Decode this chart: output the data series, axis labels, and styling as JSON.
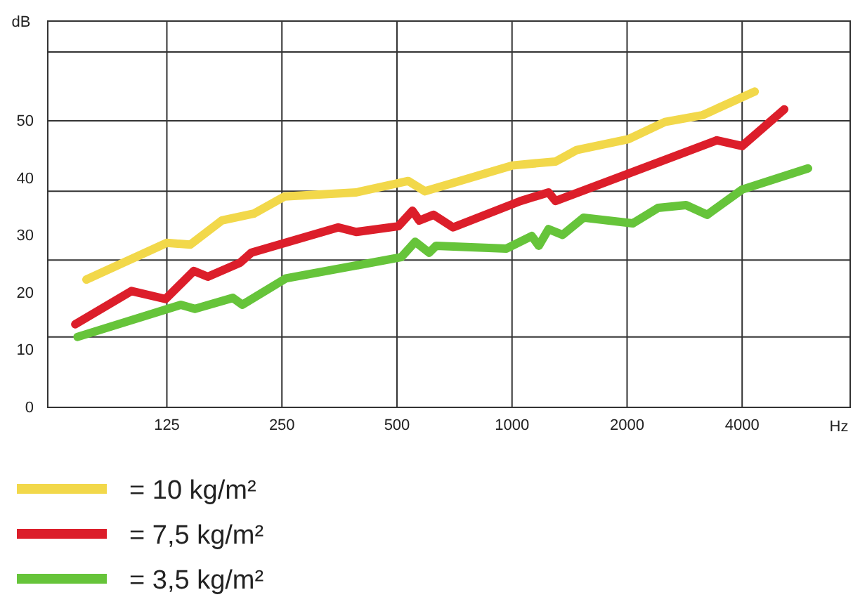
{
  "chart_data": {
    "type": "line",
    "xlabel": "Hz",
    "ylabel": "dB",
    "log": "x",
    "grid": true,
    "legend": "bottom",
    "line_style": "solid",
    "marker": "none",
    "xlim": [
      61,
      7670
    ],
    "xticks": [
      125,
      250,
      500,
      1000,
      2000,
      4000
    ],
    "ylim": [
      0,
      67.4
    ],
    "yticks": [
      0,
      10,
      20,
      30,
      40,
      50,
      {
        "value": 12.3,
        "label": null
      },
      {
        "value": 25.7,
        "label": null
      },
      {
        "value": 37.7,
        "label": null
      },
      {
        "value": 50,
        "label": null
      },
      {
        "value": 62,
        "label": null
      }
    ],
    "series": [
      {
        "name": "= 10 kg/m²",
        "color": "#f2d84a",
        "x": [
          77,
          125,
          144,
          174,
          211,
          254,
          391,
          535,
          592,
          1000,
          1300,
          1476,
          2017,
          2513,
          3157,
          4315
        ],
        "values": [
          22.3,
          28.7,
          28.4,
          32.6,
          33.8,
          36.8,
          37.5,
          39.5,
          37.7,
          42.2,
          42.9,
          44.9,
          46.8,
          49.8,
          51.0,
          55.1
        ]
      },
      {
        "name": "= 7,5 kg/m²",
        "color": "#dc1e2a",
        "x": [
          72,
          101,
          124,
          147,
          160,
          194,
          208,
          351,
          391,
          504,
          549,
          572,
          623,
          701,
          1052,
          1246,
          1300,
          3435,
          4000,
          5155
        ],
        "values": [
          14.5,
          20.3,
          18.9,
          23.8,
          22.8,
          25.2,
          27.0,
          31.4,
          30.6,
          31.6,
          34.3,
          32.6,
          33.6,
          31.4,
          36.0,
          37.5,
          36.0,
          46.6,
          45.6,
          52.0
        ]
      },
      {
        "name": "= 3,5 kg/m²",
        "color": "#66c43a",
        "x": [
          73,
          136,
          148,
          186,
          197,
          256,
          513,
          558,
          607,
          633,
          967,
          1126,
          1175,
          1246,
          1356,
          1539,
          2069,
          2409,
          2853,
          3240,
          4000,
          5950
        ],
        "values": [
          12.3,
          17.9,
          17.2,
          19.1,
          17.9,
          22.5,
          26.2,
          28.9,
          27.0,
          28.2,
          27.7,
          29.9,
          28.2,
          31.1,
          30.1,
          33.1,
          32.1,
          34.8,
          35.3,
          33.6,
          38.0,
          41.7
        ]
      }
    ]
  }
}
